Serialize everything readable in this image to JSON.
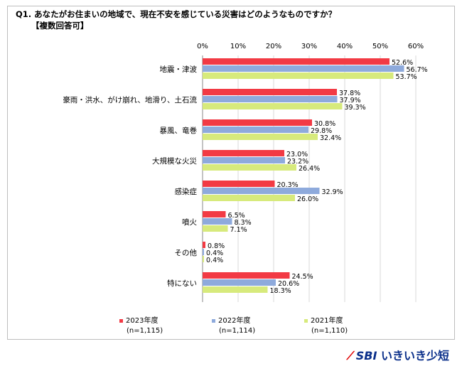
{
  "question": {
    "line1": "Q1. あなたがお住まいの地域で、現在不安を感じている災害はどのようなものですか？",
    "line2": "【複数回答可】"
  },
  "chart_data": {
    "type": "bar",
    "orientation": "horizontal",
    "categories": [
      "地震・津波",
      "豪雨・洪水、がけ崩れ、地滑り、土石流",
      "暴風、竜巻",
      "大規模な火災",
      "感染症",
      "噴火",
      "その他",
      "特にない"
    ],
    "xlim": [
      0,
      60
    ],
    "xticks": [
      "0%",
      "10%",
      "20%",
      "30%",
      "40%",
      "50%",
      "60%"
    ],
    "grid": true,
    "legend_position": "bottom",
    "series": [
      {
        "name": "2023年度",
        "n": "(n=1,115)",
        "color": "#f23a44",
        "values": [
          52.6,
          37.8,
          30.8,
          23.0,
          20.3,
          6.5,
          0.8,
          24.5
        ],
        "labels": [
          "52.6%",
          "37.8%",
          "30.8%",
          "23.0%",
          "20.3%",
          "6.5%",
          "0.8%",
          "24.5%"
        ]
      },
      {
        "name": "2022年度",
        "n": "(n=1,114)",
        "color": "#8eaadc",
        "values": [
          56.7,
          37.9,
          29.8,
          23.2,
          32.9,
          8.3,
          0.4,
          20.6
        ],
        "labels": [
          "56.7%",
          "37.9%",
          "29.8%",
          "23.2%",
          "32.9%",
          "8.3%",
          "0.4%",
          "20.6%"
        ]
      },
      {
        "name": "2021年度",
        "n": "(n=1,110)",
        "color": "#d7ea7c",
        "values": [
          53.7,
          39.3,
          32.4,
          26.4,
          26.0,
          7.1,
          0.4,
          18.3
        ],
        "labels": [
          "53.7%",
          "39.3%",
          "32.4%",
          "26.4%",
          "26.0%",
          "7.1%",
          "0.4%",
          "18.3%"
        ]
      }
    ]
  },
  "logo": {
    "brand": "SBI",
    "name": "いきいき少短"
  }
}
